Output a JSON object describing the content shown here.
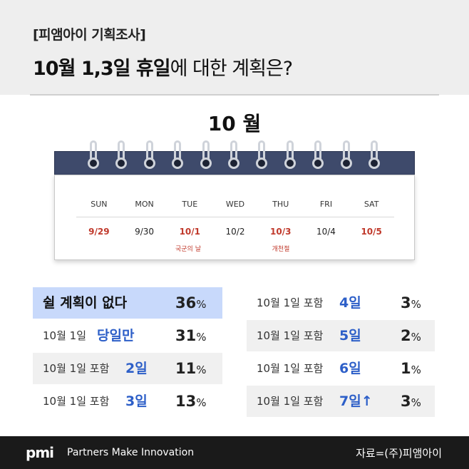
{
  "header": {
    "tag": "[피앰아이 기획조사]",
    "title_bold": "10월 1,3일 휴일",
    "title_rest": "에 대한 계획은?"
  },
  "calendar": {
    "month": "10 월",
    "days": [
      "SUN",
      "MON",
      "TUE",
      "WED",
      "THU",
      "FRI",
      "SAT"
    ],
    "dates": [
      {
        "label": "9/29",
        "red": true
      },
      {
        "label": "9/30",
        "red": false
      },
      {
        "label": "10/1",
        "red": true
      },
      {
        "label": "10/2",
        "red": false
      },
      {
        "label": "10/3",
        "red": true
      },
      {
        "label": "10/4",
        "red": false
      },
      {
        "label": "10/5",
        "red": true
      }
    ],
    "holidays": {
      "tue": "국군의 날",
      "thu": "개천절"
    }
  },
  "results": {
    "left": [
      {
        "label": "쉴 계획이 없다",
        "value": "36",
        "unit": "%"
      },
      {
        "label": "10월 1일",
        "days": "당일만",
        "value": "31",
        "unit": "%"
      },
      {
        "label": "10월 1일 포함",
        "days": "2일",
        "value": "11",
        "unit": "%"
      },
      {
        "label": "10월 1일 포함",
        "days": "3일",
        "value": "13",
        "unit": "%"
      }
    ],
    "right": [
      {
        "label": "10월 1일 포함",
        "days": "4일",
        "value": "3",
        "unit": "%"
      },
      {
        "label": "10월 1일 포함",
        "days": "5일",
        "value": "2",
        "unit": "%"
      },
      {
        "label": "10월 1일 포함",
        "days": "6일",
        "value": "1",
        "unit": "%"
      },
      {
        "label": "10월 1일 포함",
        "days": "7일↑",
        "value": "3",
        "unit": "%"
      }
    ]
  },
  "footer": {
    "logo": "pmi",
    "tagline": "Partners Make Innovation",
    "source": "자료=(주)피앰아이"
  },
  "colors": {
    "accent_blue": "#2d5fc8",
    "holiday_red": "#c0392b",
    "calendar_bar": "#3e4a6b",
    "highlight": "#c8d9fb"
  }
}
